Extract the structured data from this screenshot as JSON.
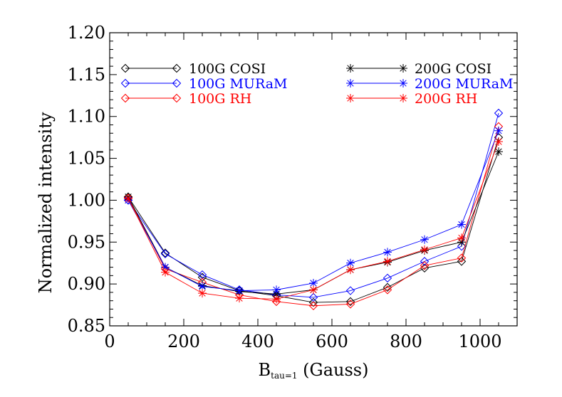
{
  "chart_data": {
    "type": "line",
    "xlabel_main": "B",
    "xlabel_sub": "tau=1",
    "xlabel_rest": " (Gauss)",
    "ylabel": "Normalized intensity",
    "xlim": [
      0,
      1100
    ],
    "ylim": [
      0.85,
      1.2
    ],
    "x_ticks": [
      0,
      200,
      400,
      600,
      800,
      1000
    ],
    "y_ticks": [
      0.85,
      0.9,
      0.95,
      1.0,
      1.05,
      1.1,
      1.15,
      1.2
    ],
    "y_tick_labels": [
      "0.85",
      "0.90",
      "0.95",
      "1.00",
      "1.05",
      "1.10",
      "1.15",
      "1.20"
    ],
    "x": [
      50,
      150,
      250,
      350,
      450,
      550,
      650,
      750,
      850,
      950,
      1050
    ],
    "series": [
      {
        "name": "100G COSI",
        "color": "#000000",
        "marker": "diamond",
        "values": [
          1.004,
          0.937,
          0.908,
          0.892,
          0.886,
          0.878,
          0.879,
          0.896,
          0.919,
          0.927,
          1.075
        ]
      },
      {
        "name": "100G MURaM",
        "color": "#0000ff",
        "marker": "diamond",
        "values": [
          1.0,
          0.936,
          0.911,
          0.893,
          0.887,
          0.884,
          0.892,
          0.907,
          0.927,
          0.945,
          1.104
        ]
      },
      {
        "name": "100G RH",
        "color": "#ff0000",
        "marker": "diamond",
        "values": [
          1.003,
          0.918,
          0.902,
          0.887,
          0.879,
          0.874,
          0.876,
          0.893,
          0.922,
          0.931,
          1.088
        ]
      },
      {
        "name": "200G COSI",
        "color": "#000000",
        "marker": "asterisk",
        "values": [
          1.004,
          0.92,
          0.898,
          0.891,
          0.888,
          0.893,
          0.917,
          0.926,
          0.94,
          0.95,
          1.058
        ]
      },
      {
        "name": "200G MURaM",
        "color": "#0000ff",
        "marker": "asterisk",
        "values": [
          1.0,
          0.92,
          0.897,
          0.892,
          0.893,
          0.901,
          0.925,
          0.938,
          0.953,
          0.971,
          1.083
        ]
      },
      {
        "name": "200G RH",
        "color": "#ff0000",
        "marker": "asterisk",
        "values": [
          1.002,
          0.914,
          0.889,
          0.883,
          0.882,
          0.893,
          0.917,
          0.927,
          0.941,
          0.955,
          1.07
        ]
      }
    ],
    "legend_position": "top"
  }
}
